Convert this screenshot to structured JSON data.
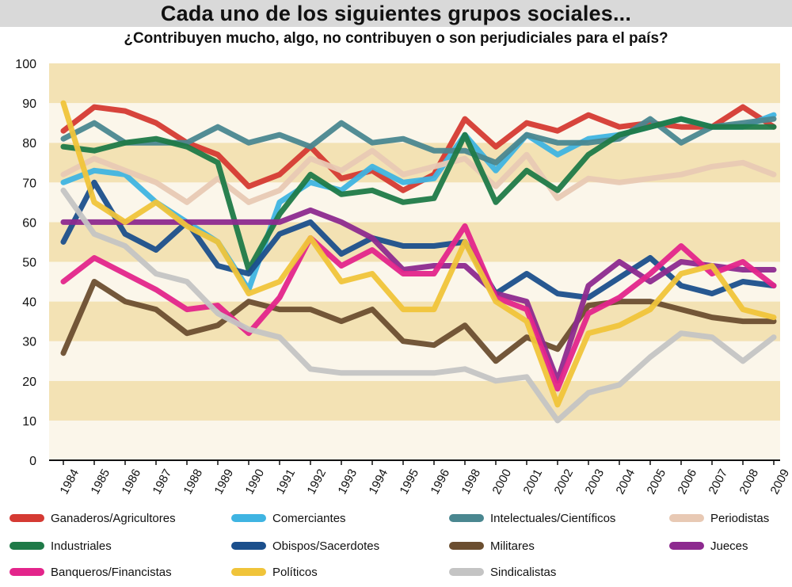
{
  "title": "Cada uno de los siguientes grupos sociales...",
  "subtitle": "¿Contribuyen mucho, algo, no contribuyen o son perjudiciales para el país?",
  "chart_data": {
    "type": "line",
    "title": "Cada uno de los siguientes grupos sociales...",
    "subtitle": "¿Contribuyen mucho, algo, no contribuyen o son perjudiciales para el país?",
    "xlabel": "",
    "ylabel": "",
    "ylim": [
      0,
      100
    ],
    "yticks": [
      "0",
      "10",
      "20",
      "30",
      "40",
      "50",
      "60",
      "70",
      "80",
      "90",
      "100"
    ],
    "categories": [
      "1984",
      "1985",
      "1986",
      "1987",
      "1988",
      "1989",
      "1990",
      "1991",
      "1992",
      "1993",
      "1994",
      "1995",
      "1996",
      "1998",
      "2000",
      "2001",
      "2002",
      "2003",
      "2004",
      "2005",
      "2006",
      "2007",
      "2008",
      "2009"
    ],
    "background_bands": "alternating light tan horizontal bands every 10 units",
    "legend_position": "bottom",
    "series": [
      {
        "name": "Ganaderos/Agricultores",
        "color": "#d53a33",
        "values": [
          83,
          89,
          88,
          85,
          80,
          77,
          69,
          72,
          79,
          71,
          73,
          68,
          72,
          86,
          79,
          85,
          83,
          87,
          84,
          85,
          84,
          84,
          89,
          84
        ]
      },
      {
        "name": "Comerciantes",
        "color": "#3fb4e2",
        "values": [
          70,
          73,
          72,
          65,
          60,
          55,
          43,
          65,
          70,
          68,
          74,
          70,
          71,
          82,
          73,
          82,
          77,
          81,
          82,
          84,
          86,
          84,
          84,
          87
        ]
      },
      {
        "name": "Intelectuales/Científicos",
        "color": "#4a8790",
        "values": [
          81,
          85,
          80,
          80,
          80,
          84,
          80,
          82,
          79,
          85,
          80,
          81,
          78,
          78,
          75,
          82,
          80,
          80,
          81,
          86,
          80,
          84,
          85,
          86
        ]
      },
      {
        "name": "Periodistas",
        "color": "#e8c9b4",
        "values": [
          72,
          76,
          73,
          70,
          65,
          71,
          65,
          68,
          76,
          73,
          78,
          72,
          74,
          76,
          69,
          77,
          66,
          71,
          70,
          71,
          72,
          74,
          75,
          72
        ]
      },
      {
        "name": "Industriales",
        "color": "#1f7a48",
        "values": [
          79,
          78,
          80,
          81,
          79,
          75,
          48,
          62,
          72,
          67,
          68,
          65,
          66,
          82,
          65,
          73,
          68,
          77,
          82,
          84,
          86,
          84,
          84,
          84
        ]
      },
      {
        "name": "Obispos/Sacerdotes",
        "color": "#1b4f8c",
        "values": [
          55,
          70,
          57,
          53,
          60,
          49,
          47,
          57,
          60,
          52,
          56,
          54,
          54,
          55,
          42,
          47,
          42,
          41,
          46,
          51,
          44,
          42,
          45,
          44
        ]
      },
      {
        "name": "Militares",
        "color": "#6b4e30",
        "values": [
          27,
          45,
          40,
          38,
          32,
          34,
          40,
          38,
          38,
          35,
          38,
          30,
          29,
          34,
          25,
          31,
          28,
          39,
          40,
          40,
          38,
          36,
          35,
          35
        ]
      },
      {
        "name": "Jueces",
        "color": "#8d2a8f",
        "values": [
          60,
          60,
          60,
          60,
          60,
          60,
          60,
          60,
          63,
          60,
          56,
          48,
          49,
          49,
          42,
          40,
          20,
          44,
          50,
          45,
          50,
          49,
          48,
          48
        ]
      },
      {
        "name": "Banqueros/Financistas",
        "color": "#e3258b",
        "values": [
          45,
          51,
          47,
          43,
          38,
          39,
          32,
          41,
          56,
          49,
          53,
          47,
          47,
          59,
          41,
          38,
          18,
          37,
          41,
          47,
          54,
          47,
          50,
          44
        ]
      },
      {
        "name": "Políticos",
        "color": "#f0c43a",
        "values": [
          90,
          65,
          60,
          65,
          59,
          55,
          42,
          45,
          56,
          45,
          47,
          38,
          38,
          55,
          40,
          35,
          14,
          32,
          34,
          38,
          47,
          49,
          38,
          36
        ]
      },
      {
        "name": "Sindicalistas",
        "color": "#c4c4c4",
        "values": [
          68,
          57,
          54,
          47,
          45,
          37,
          33,
          31,
          23,
          22,
          22,
          22,
          22,
          23,
          20,
          21,
          10,
          17,
          19,
          26,
          32,
          31,
          25,
          31
        ]
      }
    ]
  }
}
